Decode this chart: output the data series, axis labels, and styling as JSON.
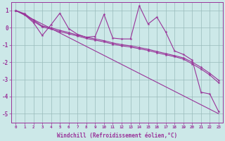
{
  "bg_color": "#cce8e8",
  "line_color": "#993399",
  "grid_color": "#99bbbb",
  "xlabel": "Windchill (Refroidissement éolien,°C)",
  "xlim": [
    -0.5,
    23.5
  ],
  "ylim": [
    -5.5,
    1.5
  ],
  "yticks": [
    -5,
    -4,
    -3,
    -2,
    -1,
    0,
    1
  ],
  "xticks": [
    0,
    1,
    2,
    3,
    4,
    5,
    6,
    7,
    8,
    9,
    10,
    11,
    12,
    13,
    14,
    15,
    16,
    17,
    18,
    19,
    20,
    21,
    22,
    23
  ],
  "straight_line": {
    "x": [
      0,
      23
    ],
    "y": [
      1.0,
      -5.0
    ]
  },
  "line_smooth1": {
    "x": [
      0,
      1,
      2,
      3,
      4,
      5,
      6,
      7,
      8,
      9,
      10,
      11,
      12,
      13,
      14,
      15,
      16,
      17,
      18,
      19,
      20,
      21,
      22,
      23
    ],
    "y": [
      1.0,
      0.82,
      0.45,
      0.1,
      0.0,
      -0.15,
      -0.28,
      -0.42,
      -0.55,
      -0.65,
      -0.75,
      -0.88,
      -0.98,
      -1.05,
      -1.15,
      -1.25,
      -1.38,
      -1.5,
      -1.62,
      -1.75,
      -2.0,
      -2.3,
      -2.65,
      -3.05
    ]
  },
  "line_smooth2": {
    "x": [
      0,
      1,
      2,
      3,
      4,
      5,
      6,
      7,
      8,
      9,
      10,
      11,
      12,
      13,
      14,
      15,
      16,
      17,
      18,
      19,
      20,
      21,
      22,
      23
    ],
    "y": [
      1.0,
      0.78,
      0.38,
      0.05,
      -0.08,
      -0.22,
      -0.35,
      -0.48,
      -0.62,
      -0.72,
      -0.82,
      -0.95,
      -1.05,
      -1.12,
      -1.22,
      -1.32,
      -1.45,
      -1.57,
      -1.68,
      -1.82,
      -2.1,
      -2.4,
      -2.75,
      -3.2
    ]
  },
  "line_zigzag": {
    "x": [
      0,
      1,
      2,
      3,
      4,
      5,
      6,
      7,
      8,
      9,
      10,
      11,
      12,
      13,
      14,
      15,
      16,
      17,
      18,
      19,
      20,
      21,
      22,
      23
    ],
    "y": [
      1.0,
      0.75,
      0.3,
      -0.45,
      0.18,
      0.85,
      -0.05,
      -0.38,
      -0.55,
      -0.5,
      0.78,
      -0.6,
      -0.65,
      -0.65,
      1.28,
      0.22,
      0.62,
      -0.25,
      -1.35,
      -1.55,
      -1.88,
      -3.75,
      -3.85,
      -4.88
    ]
  }
}
